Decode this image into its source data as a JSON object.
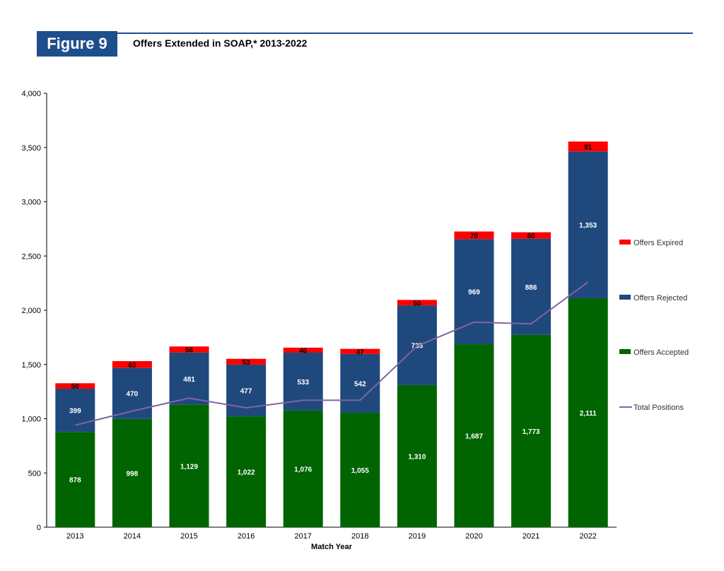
{
  "header": {
    "figure_label": "Figure 9",
    "title": "Offers Extended in SOAP,* 2013-2022"
  },
  "chart_data": {
    "type": "bar",
    "stacked": true,
    "title": "Offers Extended in SOAP,* 2013-2022",
    "xlabel": "Match Year",
    "ylabel": "",
    "ylim": [
      0,
      4000
    ],
    "yticks": [
      0,
      500,
      1000,
      1500,
      2000,
      2500,
      3000,
      3500,
      4000
    ],
    "ytick_labels": [
      "0",
      "500",
      "1,000",
      "1,500",
      "2,000",
      "2,500",
      "3,000",
      "3,500",
      "4,000"
    ],
    "grid": false,
    "legend_position": "right",
    "categories": [
      "2013",
      "2014",
      "2015",
      "2016",
      "2017",
      "2018",
      "2019",
      "2020",
      "2021",
      "2022"
    ],
    "series": [
      {
        "name": "Offers Accepted",
        "color": "#006400",
        "values": [
          878,
          998,
          1129,
          1022,
          1076,
          1055,
          1310,
          1687,
          1773,
          2111
        ],
        "labels": [
          "878",
          "998",
          "1,129",
          "1,022",
          "1,076",
          "1,055",
          "1,310",
          "1,687",
          "1,773",
          "2,111"
        ]
      },
      {
        "name": "Offers Rejected",
        "color": "#1f497d",
        "values": [
          399,
          470,
          481,
          477,
          533,
          542,
          735,
          969,
          886,
          1353
        ],
        "labels": [
          "399",
          "470",
          "481",
          "477",
          "533",
          "542",
          "735",
          "969",
          "886",
          "1,353"
        ]
      },
      {
        "name": "Offers Expired",
        "color": "#ff0000",
        "values": [
          50,
          63,
          56,
          53,
          46,
          47,
          50,
          70,
          60,
          91
        ],
        "labels": [
          "50",
          "63",
          "56",
          "53",
          "46",
          "47",
          "50",
          "70",
          "60",
          "91"
        ]
      }
    ],
    "line_series": {
      "name": "Total Positions",
      "color": "#8064a2",
      "values": [
        940,
        1070,
        1190,
        1100,
        1170,
        1170,
        1670,
        1890,
        1875,
        2260
      ]
    },
    "legend_entries": [
      "Offers Expired",
      "Offers Rejected",
      "Offers Accepted",
      "Total Positions"
    ]
  }
}
